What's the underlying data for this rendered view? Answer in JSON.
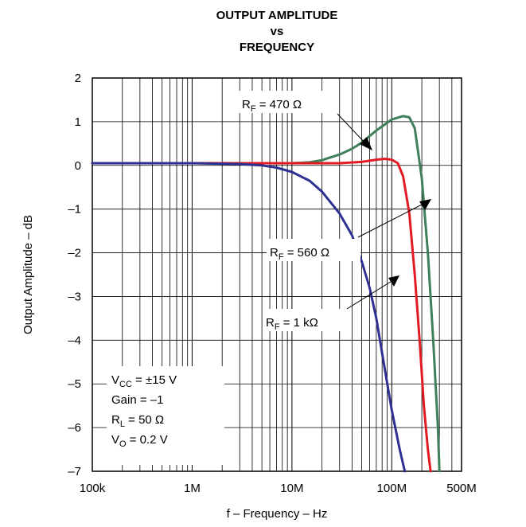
{
  "chart_data": {
    "type": "line",
    "title": [
      "OUTPUT AMPLITUDE",
      "vs",
      "FREQUENCY"
    ],
    "xlabel": "f – Frequency – Hz",
    "ylabel": "Output Amplitude – dB",
    "x_scale": "log",
    "xlim": [
      100000,
      500000000
    ],
    "ylim": [
      -7,
      2
    ],
    "x_ticks": [
      {
        "value": 100000,
        "label": "100k"
      },
      {
        "value": 1000000,
        "label": "1M"
      },
      {
        "value": 10000000,
        "label": "10M"
      },
      {
        "value": 100000000,
        "label": "100M"
      },
      {
        "value": 500000000,
        "label": "500M"
      }
    ],
    "y_ticks": [
      {
        "value": 2,
        "label": "2"
      },
      {
        "value": 1,
        "label": "1"
      },
      {
        "value": 0,
        "label": "0"
      },
      {
        "value": -1,
        "label": "–1"
      },
      {
        "value": -2,
        "label": "–2"
      },
      {
        "value": -3,
        "label": "–3"
      },
      {
        "value": -4,
        "label": "–4"
      },
      {
        "value": -5,
        "label": "–5"
      },
      {
        "value": -6,
        "label": "–6"
      },
      {
        "value": -7,
        "label": "–7"
      }
    ],
    "grid": true,
    "series": [
      {
        "label_main": "R",
        "label_sub": "F",
        "label_rest": " = 470 Ω",
        "color": "#3f7f5a",
        "points": [
          [
            100000,
            0.05
          ],
          [
            1000000,
            0.05
          ],
          [
            5000000,
            0.05
          ],
          [
            10000000,
            0.05
          ],
          [
            15000000,
            0.07
          ],
          [
            20000000,
            0.12
          ],
          [
            30000000,
            0.25
          ],
          [
            40000000,
            0.38
          ],
          [
            50000000,
            0.52
          ],
          [
            70000000,
            0.8
          ],
          [
            100000000,
            1.05
          ],
          [
            130000000,
            1.13
          ],
          [
            150000000,
            1.1
          ],
          [
            170000000,
            0.85
          ],
          [
            200000000,
            -0.3
          ],
          [
            230000000,
            -2.0
          ],
          [
            260000000,
            -4.0
          ],
          [
            290000000,
            -6.0
          ],
          [
            300000000,
            -7.0
          ]
        ]
      },
      {
        "label_main": "R",
        "label_sub": "F",
        "label_rest": " = 560 Ω",
        "color": "#e01b24",
        "points": [
          [
            100000,
            0.05
          ],
          [
            1000000,
            0.05
          ],
          [
            10000000,
            0.05
          ],
          [
            30000000,
            0.05
          ],
          [
            50000000,
            0.08
          ],
          [
            70000000,
            0.13
          ],
          [
            85000000,
            0.15
          ],
          [
            100000000,
            0.13
          ],
          [
            115000000,
            0.05
          ],
          [
            130000000,
            -0.25
          ],
          [
            150000000,
            -1.1
          ],
          [
            170000000,
            -2.5
          ],
          [
            190000000,
            -4.0
          ],
          [
            210000000,
            -5.5
          ],
          [
            230000000,
            -6.5
          ],
          [
            245000000,
            -7.0
          ]
        ]
      },
      {
        "label_main": "R",
        "label_sub": "F",
        "label_rest": " = 1 kΩ",
        "color": "#2e3192",
        "points": [
          [
            100000,
            0.05
          ],
          [
            1000000,
            0.05
          ],
          [
            3000000,
            0.03
          ],
          [
            5000000,
            0.0
          ],
          [
            7000000,
            -0.05
          ],
          [
            10000000,
            -0.15
          ],
          [
            15000000,
            -0.35
          ],
          [
            20000000,
            -0.6
          ],
          [
            30000000,
            -1.1
          ],
          [
            40000000,
            -1.6
          ],
          [
            50000000,
            -2.2
          ],
          [
            60000000,
            -2.8
          ],
          [
            70000000,
            -3.5
          ],
          [
            80000000,
            -4.3
          ],
          [
            100000000,
            -5.6
          ],
          [
            120000000,
            -6.5
          ],
          [
            135000000,
            -7.0
          ]
        ]
      }
    ],
    "annotations": [
      {
        "line1": "V",
        "line1_sub": "CC",
        "line1_rest": " = ±15 V"
      },
      {
        "text": "Gain = –1"
      },
      {
        "line1": "R",
        "line1_sub": "L",
        "line1_rest": " = 50 Ω"
      },
      {
        "line1": "V",
        "line1_sub": "O",
        "line1_rest": " = 0.2 V"
      }
    ]
  }
}
